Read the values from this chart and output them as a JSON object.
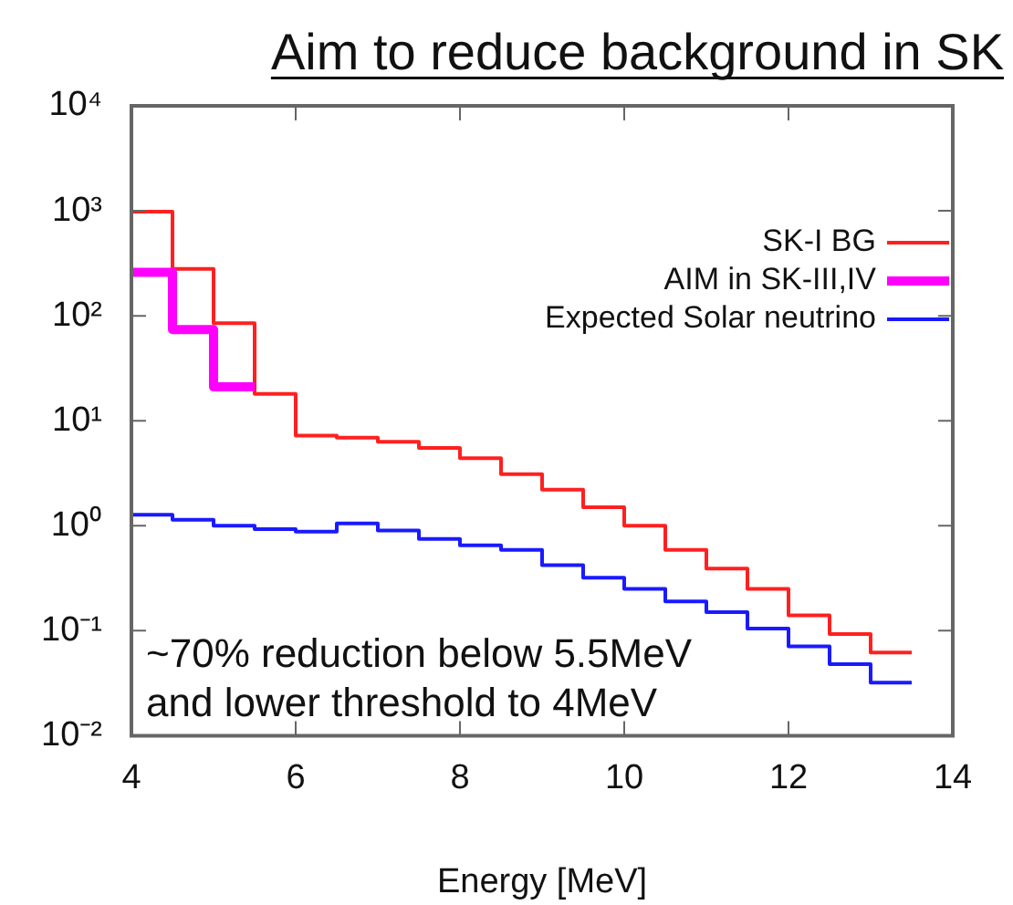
{
  "chart_data": {
    "type": "histogram",
    "title": "Aim to reduce background in SK",
    "xlabel": "Energy [MeV]",
    "bins": [
      4,
      4.5,
      5,
      5.5,
      6,
      6.5,
      7,
      7.5,
      8,
      8.5,
      9,
      9.5,
      10,
      10.5,
      11,
      11.5,
      12,
      12.5,
      13,
      13.5
    ],
    "series": [
      {
        "name": "SK-I BG",
        "color": "#ff2020",
        "values": [
          980,
          280,
          85,
          18,
          7.2,
          6.9,
          6.3,
          5.5,
          4.4,
          3.1,
          2.2,
          1.5,
          1.0,
          0.59,
          0.39,
          0.25,
          0.14,
          0.093,
          0.062
        ]
      },
      {
        "name": "AIM in SK-III,IV",
        "color": "#ff00ff",
        "bins": [
          4,
          4.5,
          5,
          5.5
        ],
        "values": [
          260,
          74,
          21
        ]
      },
      {
        "name": "Expected Solar neutrino",
        "color": "#1a1aff",
        "values": [
          1.27,
          1.14,
          1.0,
          0.93,
          0.88,
          1.05,
          0.9,
          0.75,
          0.65,
          0.59,
          0.42,
          0.32,
          0.25,
          0.19,
          0.15,
          0.105,
          0.071,
          0.048,
          0.032
        ]
      }
    ],
    "log": "y",
    "xlim": [
      4,
      14
    ],
    "xticks": [
      4,
      6,
      8,
      10,
      12,
      14
    ],
    "ylim": [
      0.01,
      10000
    ],
    "yticks": [
      {
        "value": 0.01,
        "label": "10⁻²"
      },
      {
        "value": 0.1,
        "label": "10⁻¹"
      },
      {
        "value": 1,
        "label": "10⁰"
      },
      {
        "value": 10,
        "label": "10¹"
      },
      {
        "value": 100,
        "label": "10²"
      },
      {
        "value": 1000,
        "label": "10³"
      },
      {
        "value": 10000,
        "label": "10⁴"
      }
    ],
    "grid": false,
    "legend": "top right",
    "annotations": [
      "~70% reduction below 5.5MeV",
      "and lower threshold to 4MeV"
    ]
  }
}
